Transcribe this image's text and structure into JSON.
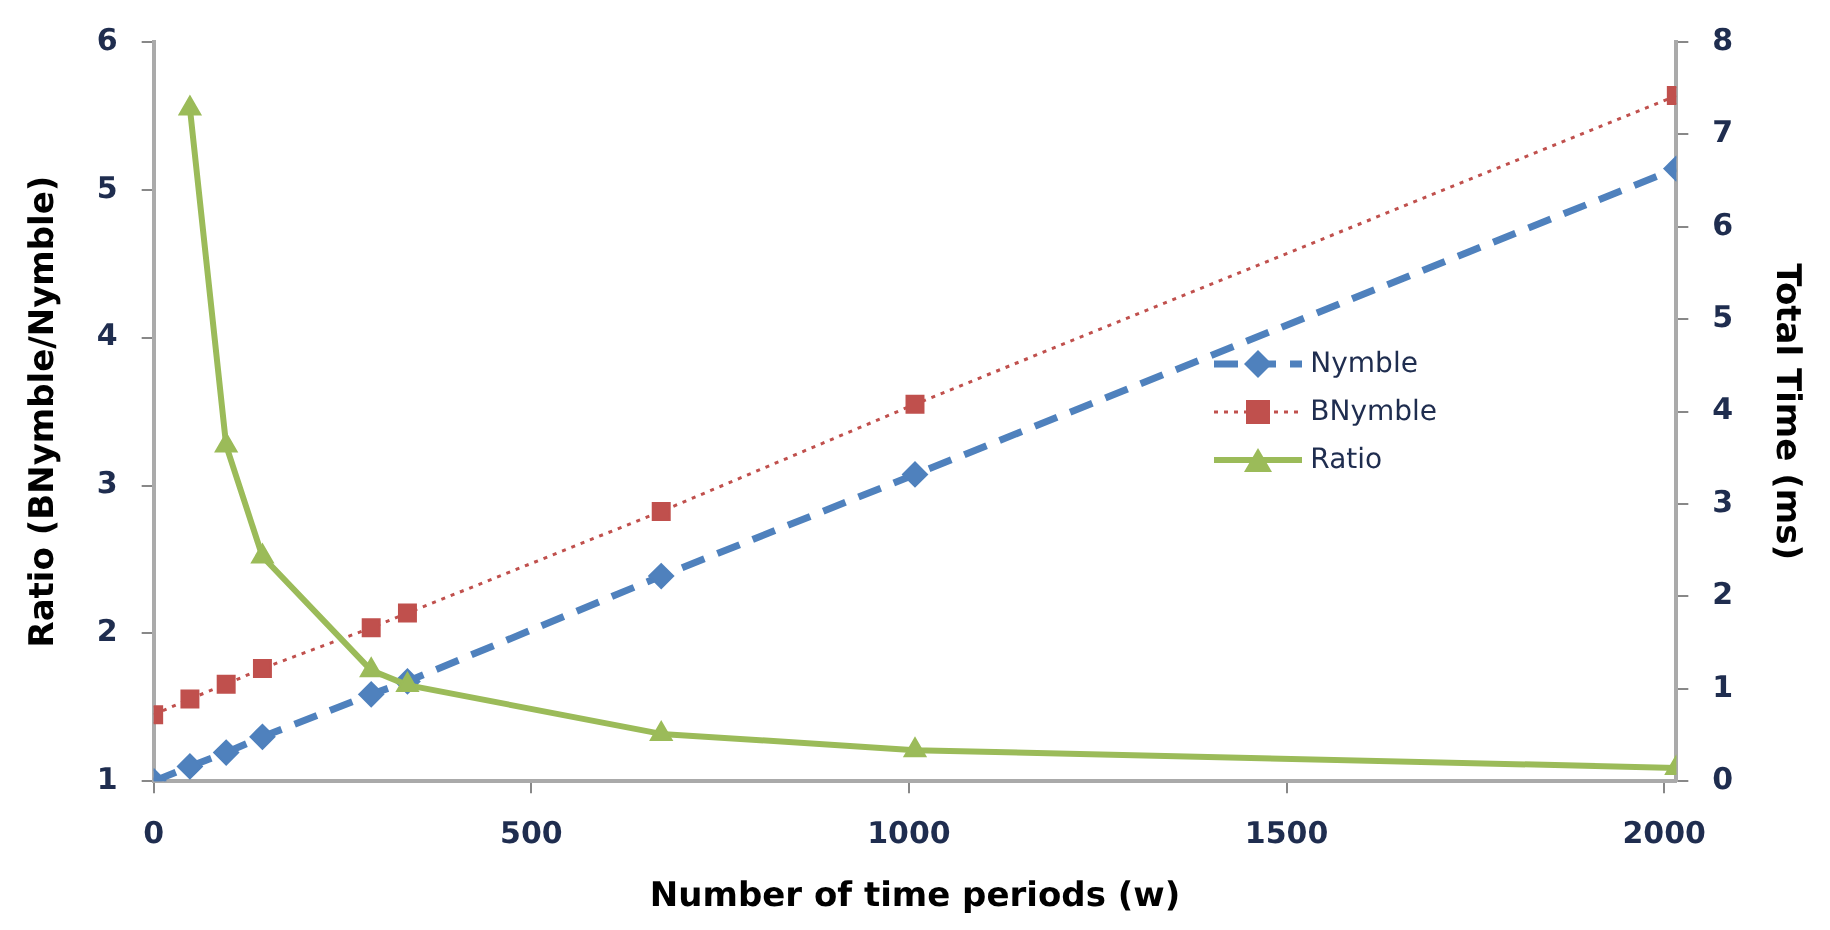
{
  "chart_data": {
    "type": "line",
    "xlabel": "Number of time periods (w)",
    "ylabel": "Ratio (BNymble/Nymble)",
    "y2label": "Total Time (ms)",
    "x": [
      0,
      48,
      96,
      144,
      288,
      336,
      672,
      1008,
      2016
    ],
    "series": [
      {
        "name": "Nymble",
        "color": "#4f81bd",
        "axis": "y2",
        "marker": "diamond",
        "line_style": "dashed",
        "values": [
          0,
          0.16,
          0.31,
          0.48,
          0.94,
          1.08,
          2.22,
          3.32,
          6.63
        ]
      },
      {
        "name": "BNymble",
        "color": "#c0504d",
        "axis": "y2",
        "marker": "square",
        "line_style": "dotted",
        "values": [
          0.72,
          0.89,
          1.05,
          1.22,
          1.66,
          1.82,
          2.92,
          4.08,
          7.42
        ]
      },
      {
        "name": "Ratio",
        "color": "#9bbb59",
        "axis": "y",
        "marker": "triangle",
        "line_style": "solid",
        "values": [
          null,
          5.55,
          3.27,
          2.52,
          1.75,
          1.65,
          1.32,
          1.21,
          1.09
        ]
      }
    ],
    "xlim": [
      0,
      2016
    ],
    "xticks": [
      0,
      500,
      1000,
      1500,
      2000
    ],
    "ylim": [
      1,
      6
    ],
    "yticks": [
      1,
      2,
      3,
      4,
      5,
      6
    ],
    "y2lim": [
      0,
      8
    ],
    "y2ticks": [
      0,
      1,
      2,
      3,
      4,
      5,
      6,
      7,
      8
    ],
    "grid": false,
    "legend": "right"
  }
}
